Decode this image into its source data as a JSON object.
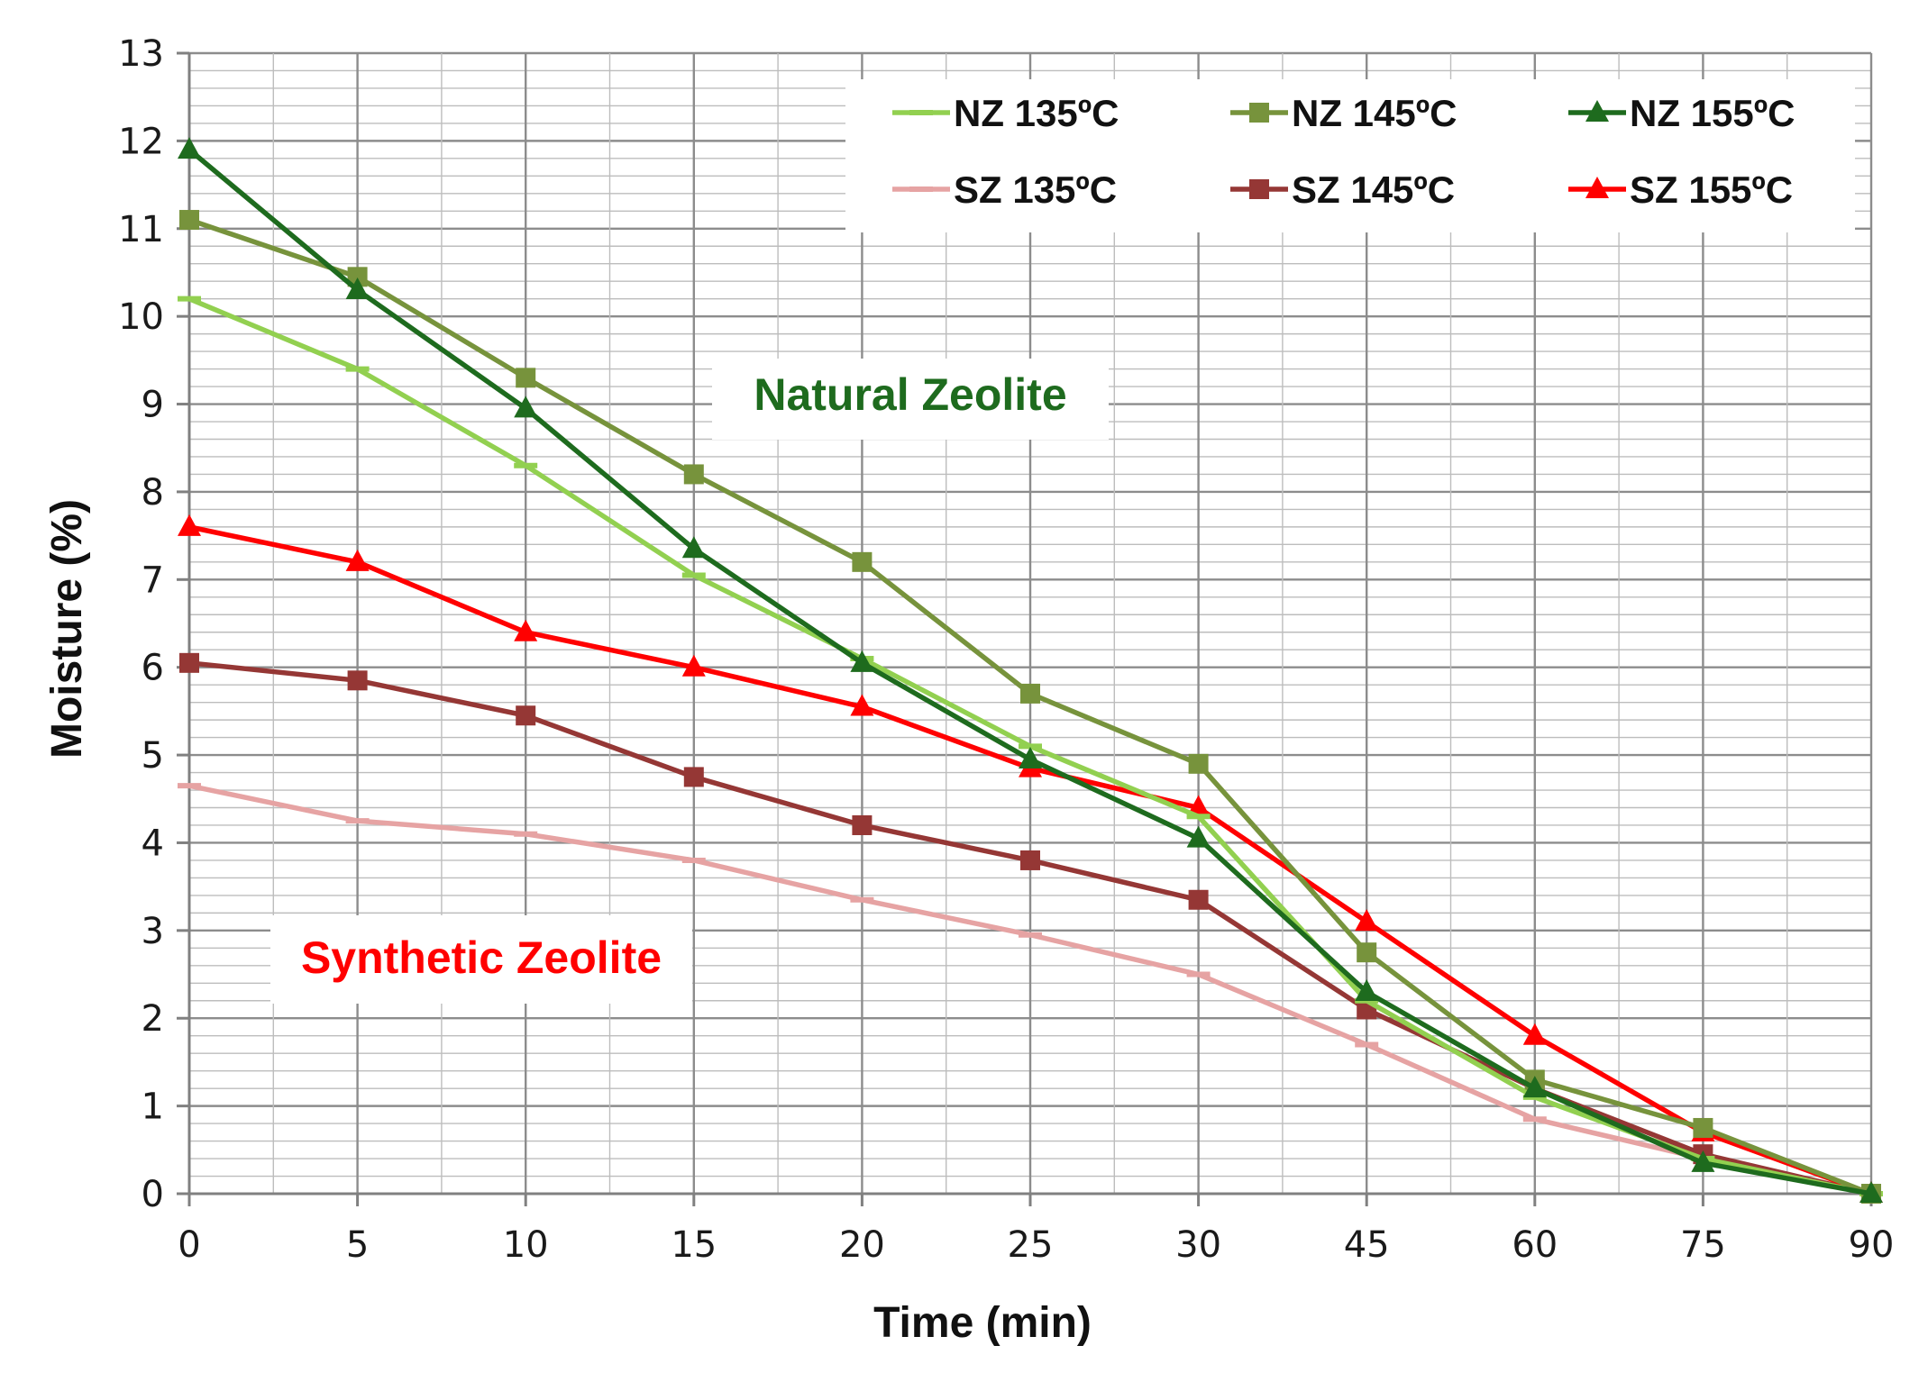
{
  "chart_data": {
    "type": "line",
    "title": "",
    "xlabel": "Time (min)",
    "ylabel": "Moisture (%)",
    "categories": [
      "0",
      "5",
      "10",
      "15",
      "20",
      "25",
      "30",
      "45",
      "60",
      "75",
      "90"
    ],
    "ylim": [
      0,
      13
    ],
    "yticks": [
      "0",
      "1",
      "2",
      "3",
      "4",
      "5",
      "6",
      "7",
      "8",
      "9",
      "10",
      "11",
      "12",
      "13"
    ],
    "grid": true,
    "legend_position": "top-right",
    "series": [
      {
        "name": "NZ 135ºC",
        "color": "#92d050",
        "marker": "dash",
        "values": [
          10.2,
          9.4,
          8.3,
          7.05,
          6.1,
          5.1,
          4.3,
          2.2,
          1.1,
          0.4,
          0
        ]
      },
      {
        "name": "NZ 145ºC",
        "color": "#77933c",
        "marker": "square",
        "values": [
          11.1,
          10.45,
          9.3,
          8.2,
          7.2,
          5.7,
          4.9,
          2.75,
          1.3,
          0.75,
          0
        ]
      },
      {
        "name": "NZ 155ºC",
        "color": "#1e6b1e",
        "marker": "triangle",
        "values": [
          11.9,
          10.3,
          8.95,
          7.35,
          6.05,
          4.95,
          4.05,
          2.3,
          1.2,
          0.35,
          0
        ]
      },
      {
        "name": "SZ 135ºC",
        "color": "#e6a3a3",
        "marker": "dash",
        "values": [
          4.65,
          4.25,
          4.1,
          3.8,
          3.35,
          2.95,
          2.5,
          1.7,
          0.85,
          0.4,
          0
        ]
      },
      {
        "name": "SZ 145ºC",
        "color": "#953735",
        "marker": "square",
        "values": [
          6.05,
          5.85,
          5.45,
          4.75,
          4.2,
          3.8,
          3.35,
          2.1,
          1.2,
          0.45,
          0
        ]
      },
      {
        "name": "SZ 155ºC",
        "color": "#ff0000",
        "marker": "triangle",
        "values": [
          7.6,
          7.2,
          6.4,
          6.0,
          5.55,
          4.85,
          4.4,
          3.1,
          1.8,
          0.7,
          0
        ]
      }
    ],
    "annotations": [
      {
        "text": "Natural Zeolite",
        "color": "#1e6b1e"
      },
      {
        "text": "Synthetic Zeolite",
        "color": "#ff0000"
      }
    ]
  }
}
